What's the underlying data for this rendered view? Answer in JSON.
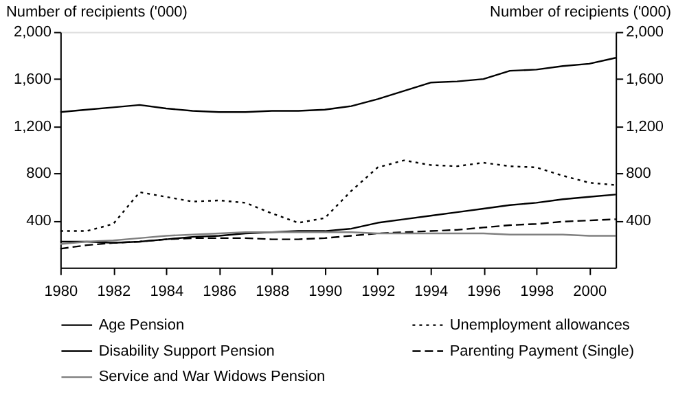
{
  "chart_data": {
    "type": "line",
    "ylabel": "Number of recipients ('000)",
    "y2label": "Number of recipients ('000)",
    "x": [
      1980,
      1981,
      1982,
      1983,
      1984,
      1985,
      1986,
      1987,
      1988,
      1989,
      1990,
      1991,
      1992,
      1993,
      1994,
      1995,
      1996,
      1997,
      1998,
      1999,
      2000,
      2001
    ],
    "series": [
      {
        "name": "Age Pension",
        "color": "#000000",
        "line_style": "solid",
        "values": [
          1320,
          1340,
          1360,
          1380,
          1350,
          1330,
          1320,
          1320,
          1330,
          1330,
          1340,
          1370,
          1430,
          1500,
          1570,
          1580,
          1600,
          1670,
          1680,
          1710,
          1730,
          1780
        ]
      },
      {
        "name": "Unemployment allowances",
        "color": "#000000",
        "line_style": "dotted",
        "values": [
          310,
          310,
          370,
          640,
          600,
          560,
          570,
          550,
          460,
          380,
          420,
          650,
          850,
          910,
          870,
          860,
          890,
          860,
          850,
          780,
          720,
          700
        ]
      },
      {
        "name": "Disability Support Pension",
        "color": "#000000",
        "line_style": "solid",
        "values": [
          220,
          220,
          210,
          220,
          240,
          260,
          270,
          290,
          300,
          310,
          310,
          330,
          380,
          410,
          440,
          470,
          500,
          530,
          550,
          580,
          600,
          620
        ]
      },
      {
        "name": "Parenting Payment (Single)",
        "color": "#000000",
        "line_style": "dashed",
        "values": [
          160,
          190,
          210,
          220,
          240,
          250,
          250,
          250,
          240,
          240,
          250,
          270,
          290,
          300,
          310,
          320,
          340,
          360,
          370,
          390,
          400,
          410
        ]
      },
      {
        "name": "Service and War Widows Pension",
        "color": "#808080",
        "line_style": "solid",
        "values": [
          200,
          220,
          230,
          250,
          270,
          280,
          290,
          300,
          300,
          300,
          300,
          300,
          290,
          290,
          290,
          290,
          290,
          280,
          280,
          280,
          270,
          270
        ]
      }
    ],
    "xlim": [
      1980,
      2001
    ],
    "xticks": [
      1980,
      1982,
      1984,
      1986,
      1988,
      1990,
      1992,
      1994,
      1996,
      1998,
      2000
    ],
    "ylim": [
      0,
      2000
    ],
    "yticks": [
      400,
      800,
      {
        "value": 1200,
        "label": "1,200"
      },
      {
        "value": 1600,
        "label": "1,600"
      },
      {
        "value": 2000,
        "label": "2,000"
      }
    ],
    "y2lim": [
      0,
      2000
    ],
    "y2ticks": [
      400,
      800,
      {
        "value": 1200,
        "label": "1,200"
      },
      {
        "value": 1600,
        "label": "1,600"
      },
      {
        "value": 2000,
        "label": "2,000"
      }
    ],
    "grid": false,
    "legend": "bottom",
    "marker": "none"
  }
}
